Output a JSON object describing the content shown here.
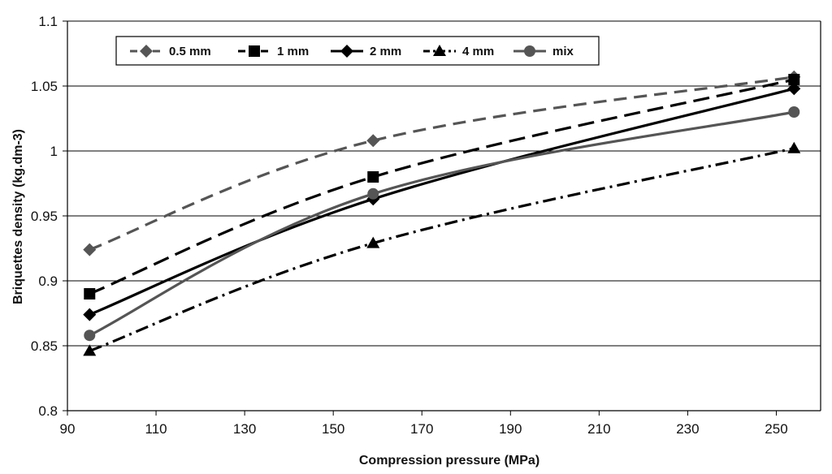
{
  "chart_data": {
    "type": "line",
    "title": "",
    "xlabel": "Compression pressure (MPa)",
    "ylabel": "Briquettes density (kg.dm-3)",
    "xlim": [
      90,
      260
    ],
    "ylim": [
      0.8,
      1.1
    ],
    "x_ticks": [
      90,
      110,
      130,
      150,
      170,
      190,
      210,
      230,
      250
    ],
    "y_ticks": [
      "0.8",
      "0.85",
      "0.9",
      "0.95",
      "1",
      "1.05",
      "1.1"
    ],
    "grid": "horizontal",
    "legend_position": "top-left",
    "series": [
      {
        "name": "0.5 mm",
        "x": [
          95,
          159,
          254
        ],
        "values": [
          0.924,
          1.008,
          1.057
        ],
        "color": "#555555",
        "dash": "dashed",
        "marker": "diamond"
      },
      {
        "name": "1 mm",
        "x": [
          95,
          159,
          254
        ],
        "values": [
          0.89,
          0.98,
          1.055
        ],
        "color": "#000000",
        "dash": "long-dash",
        "marker": "square"
      },
      {
        "name": "2 mm",
        "x": [
          95,
          159,
          254
        ],
        "values": [
          0.874,
          0.963,
          1.048
        ],
        "color": "#000000",
        "dash": "solid",
        "marker": "diamond"
      },
      {
        "name": "4 mm",
        "x": [
          95,
          159,
          254
        ],
        "values": [
          0.846,
          0.929,
          1.002
        ],
        "color": "#000000",
        "dash": "dash-dot",
        "marker": "triangle"
      },
      {
        "name": "mix",
        "x": [
          95,
          159,
          254
        ],
        "values": [
          0.858,
          0.967,
          1.03
        ],
        "color": "#555555",
        "dash": "solid",
        "marker": "circle"
      }
    ]
  }
}
